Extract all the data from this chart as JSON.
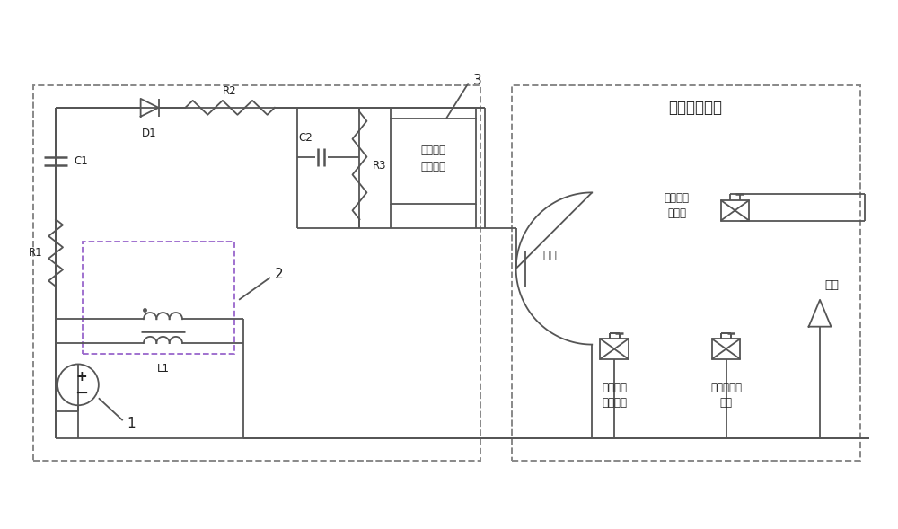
{
  "bg_color": "#ffffff",
  "line_color": "#555555",
  "dashed_color": "#888888",
  "text_color": "#222222",
  "fig_width": 10.0,
  "fig_height": 5.89,
  "title": "霍尔电推力器",
  "label_device": "星载遥感\n测量装置",
  "label_outer_coil": "外线圈励\n磁电源",
  "label_add_coil": "附加线圈\n励磁电源",
  "label_inner_coil": "内线圈励磁\n电源",
  "label_anode": "阳极",
  "label_cathode": "阴极",
  "label_D1": "D1",
  "label_R1": "R1",
  "label_R2": "R2",
  "label_R3": "R3",
  "label_C1": "C1",
  "label_C2": "C2",
  "label_L1": "L1",
  "label_1": "1",
  "label_2": "2",
  "label_3": "3"
}
